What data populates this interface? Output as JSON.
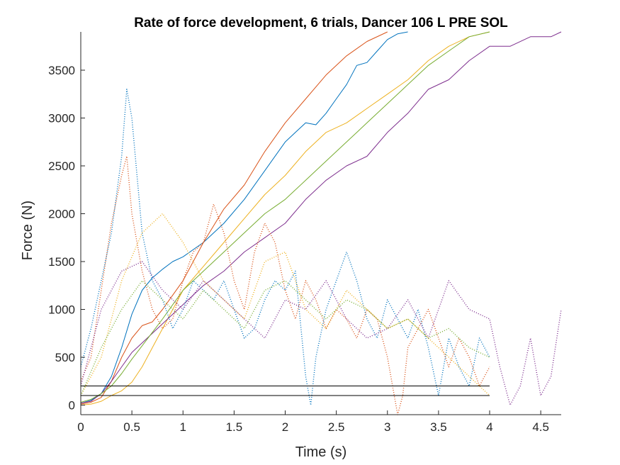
{
  "chart_data": {
    "type": "line",
    "title": "Rate of force development, 6 trials, Dancer 106 L PRE SOL",
    "xlabel": "Time (s)",
    "ylabel": "Force (N)",
    "xlim": [
      0,
      4.7
    ],
    "ylim": [
      -100,
      3900
    ],
    "xticks": [
      "0",
      "0.5",
      "1",
      "1.5",
      "2",
      "2.5",
      "3",
      "3.5",
      "4",
      "4.5"
    ],
    "yticks": [
      "0",
      "500",
      "1000",
      "1500",
      "2000",
      "2500",
      "3000",
      "3500"
    ],
    "grid": false,
    "legend": "none",
    "reference_lines": [
      {
        "y": 100,
        "x": [
          0,
          4
        ],
        "color": "#000000"
      },
      {
        "y": 200,
        "x": [
          0,
          4
        ],
        "color": "#000000"
      }
    ],
    "series": [
      {
        "style": "solid",
        "color": "#0072BD",
        "x": [
          0,
          0.1,
          0.2,
          0.3,
          0.4,
          0.5,
          0.6,
          0.7,
          0.8,
          0.9,
          1.0,
          1.2,
          1.4,
          1.6,
          1.8,
          2.0,
          2.1,
          2.2,
          2.3,
          2.4,
          2.5,
          2.6,
          2.7,
          2.8,
          2.9,
          3.0,
          3.1,
          3.2
        ],
        "y": [
          20,
          50,
          120,
          300,
          600,
          950,
          1200,
          1330,
          1420,
          1500,
          1550,
          1700,
          1900,
          2150,
          2450,
          2750,
          2850,
          2950,
          2930,
          3050,
          3200,
          3350,
          3550,
          3580,
          3700,
          3820,
          3880,
          3920
        ]
      },
      {
        "style": "solid",
        "color": "#D95319",
        "x": [
          0,
          0.1,
          0.2,
          0.3,
          0.4,
          0.5,
          0.6,
          0.7,
          0.8,
          0.9,
          1.0,
          1.2,
          1.4,
          1.6,
          1.8,
          2.0,
          2.2,
          2.4,
          2.6,
          2.8,
          3.0
        ],
        "y": [
          10,
          30,
          80,
          250,
          500,
          700,
          830,
          870,
          1000,
          1150,
          1300,
          1700,
          2050,
          2300,
          2650,
          2950,
          3200,
          3450,
          3650,
          3800,
          3900
        ]
      },
      {
        "style": "solid",
        "color": "#EDB120",
        "x": [
          0,
          0.1,
          0.2,
          0.3,
          0.4,
          0.5,
          0.6,
          0.7,
          0.8,
          0.9,
          1.0,
          1.2,
          1.4,
          1.6,
          1.8,
          2.0,
          2.2,
          2.4,
          2.6,
          2.8,
          3.0,
          3.2,
          3.4,
          3.6,
          3.8,
          4.0
        ],
        "y": [
          0,
          10,
          40,
          100,
          150,
          240,
          400,
          600,
          800,
          1000,
          1200,
          1450,
          1700,
          1950,
          2200,
          2400,
          2650,
          2850,
          2950,
          3100,
          3250,
          3400,
          3600,
          3750,
          3850,
          3900
        ]
      },
      {
        "style": "solid",
        "color": "#7E2F8E",
        "x": [
          0,
          0.1,
          0.2,
          0.3,
          0.4,
          0.5,
          0.6,
          0.7,
          0.8,
          0.9,
          1.0,
          1.2,
          1.4,
          1.6,
          1.8,
          2.0,
          2.2,
          2.4,
          2.6,
          2.8,
          3.0,
          3.2,
          3.4,
          3.6,
          3.8,
          4.0,
          4.2,
          4.4,
          4.6,
          4.7
        ],
        "y": [
          20,
          40,
          120,
          250,
          400,
          550,
          650,
          750,
          850,
          950,
          1050,
          1250,
          1400,
          1600,
          1750,
          1900,
          2150,
          2350,
          2500,
          2600,
          2850,
          3050,
          3300,
          3400,
          3600,
          3750,
          3750,
          3850,
          3850,
          3900
        ]
      },
      {
        "style": "solid",
        "color": "#77AC30",
        "x": [
          0,
          0.1,
          0.2,
          0.3,
          0.4,
          0.5,
          0.6,
          0.7,
          0.8,
          0.9,
          1.0,
          1.2,
          1.4,
          1.6,
          1.8,
          2.0,
          2.2,
          2.4,
          2.6,
          2.8,
          3.0,
          3.2,
          3.4,
          3.6,
          3.8,
          4.0
        ],
        "y": [
          30,
          60,
          120,
          200,
          330,
          480,
          620,
          760,
          900,
          1050,
          1200,
          1400,
          1600,
          1800,
          2000,
          2150,
          2350,
          2550,
          2750,
          2950,
          3150,
          3350,
          3550,
          3700,
          3850,
          3900
        ]
      },
      {
        "style": "dotted",
        "color": "#0072BD",
        "x": [
          0,
          0.1,
          0.2,
          0.3,
          0.4,
          0.45,
          0.5,
          0.6,
          0.7,
          0.8,
          0.9,
          1.0,
          1.1,
          1.2,
          1.3,
          1.4,
          1.5,
          1.6,
          1.7,
          1.8,
          1.9,
          2.0,
          2.1,
          2.2,
          2.25,
          2.3,
          2.4,
          2.5,
          2.6,
          2.7,
          2.8,
          2.9,
          3.0,
          3.1,
          3.2,
          3.3,
          3.4,
          3.5,
          3.6,
          3.7,
          3.8,
          3.9,
          4.0
        ],
        "y": [
          400,
          800,
          1300,
          1800,
          2600,
          3300,
          3000,
          1800,
          1300,
          1100,
          800,
          1000,
          1300,
          1200,
          1100,
          1300,
          1000,
          700,
          800,
          1100,
          1300,
          1200,
          1400,
          300,
          0,
          500,
          1000,
          1300,
          1600,
          1300,
          900,
          700,
          1100,
          900,
          700,
          1000,
          600,
          100,
          700,
          400,
          200,
          700,
          500
        ]
      },
      {
        "style": "dotted",
        "color": "#D95319",
        "x": [
          0,
          0.1,
          0.2,
          0.3,
          0.4,
          0.45,
          0.5,
          0.6,
          0.7,
          0.8,
          0.9,
          1.0,
          1.1,
          1.2,
          1.3,
          1.4,
          1.5,
          1.6,
          1.7,
          1.8,
          1.9,
          2.0,
          2.1,
          2.2,
          2.3,
          2.4,
          2.5,
          2.6,
          2.7,
          2.8,
          2.9,
          3.0,
          3.05,
          3.1,
          3.15,
          3.2,
          3.3,
          3.4,
          3.5,
          3.6,
          3.7,
          3.8,
          3.9,
          4.0
        ],
        "y": [
          250,
          500,
          1200,
          1900,
          2400,
          2600,
          2000,
          1400,
          1000,
          800,
          900,
          1300,
          1600,
          1700,
          2100,
          1800,
          1300,
          1000,
          1600,
          1900,
          1700,
          1200,
          900,
          1300,
          1100,
          800,
          1000,
          900,
          700,
          1000,
          900,
          500,
          200,
          -100,
          100,
          600,
          800,
          1000,
          700,
          400,
          700,
          500,
          200,
          400
        ]
      },
      {
        "style": "dotted",
        "color": "#EDB120",
        "x": [
          0,
          0.2,
          0.4,
          0.6,
          0.8,
          1.0,
          1.2,
          1.4,
          1.6,
          1.8,
          2.0,
          2.2,
          2.4,
          2.6,
          2.8,
          3.0,
          3.2,
          3.4,
          3.6,
          3.8,
          4.0
        ],
        "y": [
          100,
          500,
          1300,
          1800,
          2000,
          1700,
          1300,
          1100,
          900,
          1500,
          1600,
          1000,
          800,
          1200,
          1000,
          800,
          900,
          700,
          500,
          300,
          100
        ]
      },
      {
        "style": "dotted",
        "color": "#7E2F8E",
        "x": [
          0,
          0.2,
          0.4,
          0.6,
          0.8,
          1.0,
          1.2,
          1.4,
          1.6,
          1.8,
          2.0,
          2.2,
          2.4,
          2.6,
          2.8,
          3.0,
          3.2,
          3.4,
          3.6,
          3.8,
          4.0,
          4.1,
          4.2,
          4.3,
          4.4,
          4.5,
          4.6,
          4.7
        ],
        "y": [
          200,
          1000,
          1400,
          1500,
          1200,
          1000,
          1300,
          1100,
          900,
          700,
          1100,
          1000,
          1300,
          900,
          700,
          800,
          1100,
          700,
          1300,
          1000,
          900,
          400,
          0,
          200,
          700,
          100,
          300,
          1000
        ]
      },
      {
        "style": "dotted",
        "color": "#77AC30",
        "x": [
          0,
          0.2,
          0.4,
          0.6,
          0.8,
          1.0,
          1.2,
          1.4,
          1.6,
          1.8,
          2.0,
          2.2,
          2.4,
          2.6,
          2.8,
          3.0,
          3.2,
          3.4,
          3.6,
          3.8,
          4.0
        ],
        "y": [
          100,
          600,
          1000,
          1300,
          1100,
          900,
          1200,
          1000,
          800,
          1200,
          1300,
          1100,
          900,
          1100,
          1000,
          800,
          900,
          700,
          800,
          600,
          500
        ]
      }
    ]
  }
}
